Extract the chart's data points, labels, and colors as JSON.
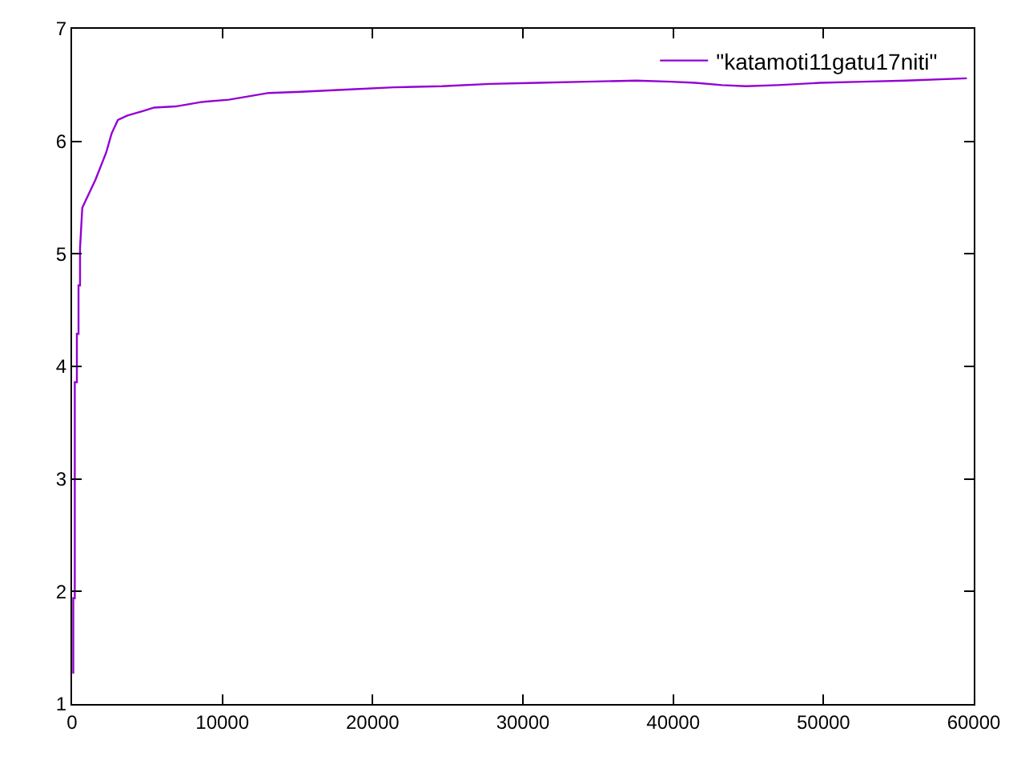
{
  "chart_data": {
    "type": "line",
    "xlim": [
      0,
      60000
    ],
    "ylim": [
      1,
      7
    ],
    "xticks": [
      0,
      10000,
      20000,
      30000,
      40000,
      50000,
      60000
    ],
    "yticks": [
      1,
      2,
      3,
      4,
      5,
      6,
      7
    ],
    "legend": "top right",
    "marker": "none",
    "line_style": "solid",
    "series": [
      {
        "name": "\"katamoti11gatu17niti\"",
        "color": "#9400d3",
        "x": [
          80,
          80,
          180,
          180,
          320,
          320,
          430,
          430,
          530,
          530,
          680,
          1560,
          2270,
          2630,
          3050,
          3690,
          4750,
          5460,
          6880,
          8650,
          10430,
          13090,
          15210,
          18230,
          21420,
          24620,
          27810,
          31000,
          34190,
          37560,
          39870,
          41460,
          43240,
          44840,
          46960,
          49790,
          52630,
          55470,
          59540
        ],
        "values": [
          1.27,
          1.94,
          1.94,
          3.86,
          3.86,
          4.29,
          4.29,
          4.72,
          4.72,
          5.05,
          5.41,
          5.66,
          5.9,
          6.07,
          6.19,
          6.23,
          6.27,
          6.3,
          6.31,
          6.35,
          6.37,
          6.43,
          6.44,
          6.46,
          6.48,
          6.49,
          6.51,
          6.52,
          6.53,
          6.54,
          6.53,
          6.52,
          6.5,
          6.49,
          6.5,
          6.52,
          6.53,
          6.54,
          6.56
        ]
      }
    ]
  }
}
